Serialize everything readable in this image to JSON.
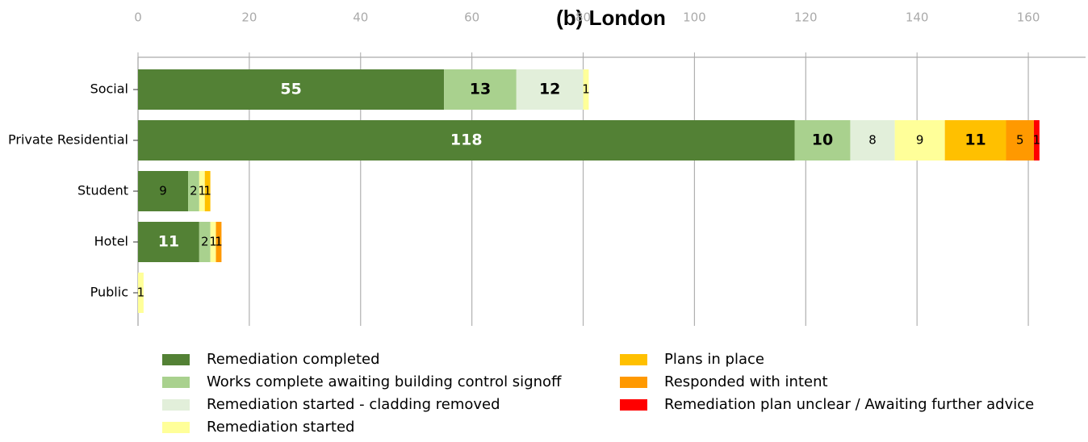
{
  "chart_data": {
    "type": "stacked_barh",
    "title": "(b) London",
    "categories": [
      "Social",
      "Private Residential",
      "Student",
      "Hotel",
      "Public"
    ],
    "series": [
      {
        "name": "Remediation completed",
        "color": "#538135",
        "values": [
          55,
          118,
          9,
          11,
          null
        ]
      },
      {
        "name": "Works complete awaiting building control signoff",
        "color": "#a9d18e",
        "values": [
          13,
          10,
          2,
          2,
          null
        ]
      },
      {
        "name": "Remediation started - cladding removed",
        "color": "#e2efda",
        "values": [
          12,
          8,
          null,
          null,
          null
        ]
      },
      {
        "name": "Remediation started",
        "color": "#ffff99",
        "values": [
          1,
          9,
          1,
          1,
          1
        ]
      },
      {
        "name": "Plans in place",
        "color": "#ffc000",
        "values": [
          null,
          11,
          1,
          null,
          null
        ]
      },
      {
        "name": "Responded with intent",
        "color": "#ff9900",
        "values": [
          null,
          5,
          null,
          1,
          null
        ]
      },
      {
        "name": "Remediation plan unclear / Awaiting further advice",
        "color": "#ff0000",
        "values": [
          null,
          1,
          null,
          null,
          null
        ]
      }
    ],
    "xlim": [
      0,
      170
    ],
    "xticks": [
      0,
      20,
      40,
      60,
      80,
      100,
      120,
      140,
      160
    ],
    "grid": true
  }
}
